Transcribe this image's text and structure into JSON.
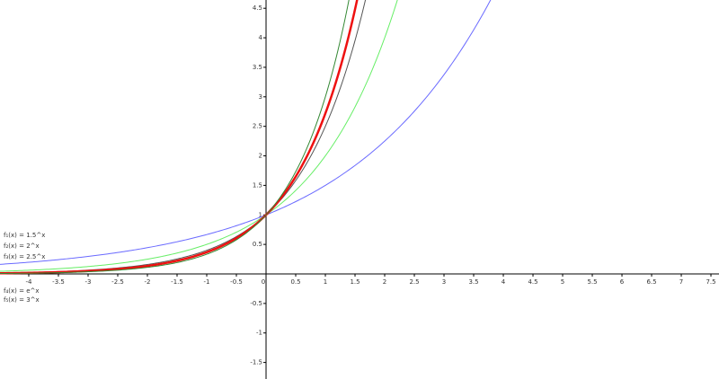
{
  "chart_data": {
    "type": "function",
    "series": [
      {
        "name": "f₁(x) = 1.5^x",
        "base": 1.5,
        "color": "#6a6aff"
      },
      {
        "name": "f₂(x) = 2^x",
        "base": 2,
        "color": "#66ee66"
      },
      {
        "name": "f₃(x) = 2.5^x",
        "base": 2.5,
        "color": "#555555"
      },
      {
        "name": "f₄(x) = e^x",
        "base": 2.718281828,
        "color": "#ee1111"
      },
      {
        "name": "f₅(x) = 3^x",
        "base": 3,
        "color": "#338833"
      }
    ],
    "xlim": [
      -4.485,
      7.636
    ],
    "ylim": [
      -1.78,
      4.64
    ],
    "xticks": [
      -4,
      -3.5,
      -3,
      -2.5,
      -2,
      -1.5,
      -1,
      -0.5,
      0,
      0.5,
      1,
      1.5,
      2,
      2.5,
      3,
      3.5,
      4,
      4.5,
      5,
      5.5,
      6,
      6.5,
      7,
      7.5
    ],
    "yticks": [
      -1.5,
      -1,
      -0.5,
      0.5,
      1,
      1.5,
      2,
      2.5,
      3,
      3.5,
      4,
      4.5
    ]
  }
}
